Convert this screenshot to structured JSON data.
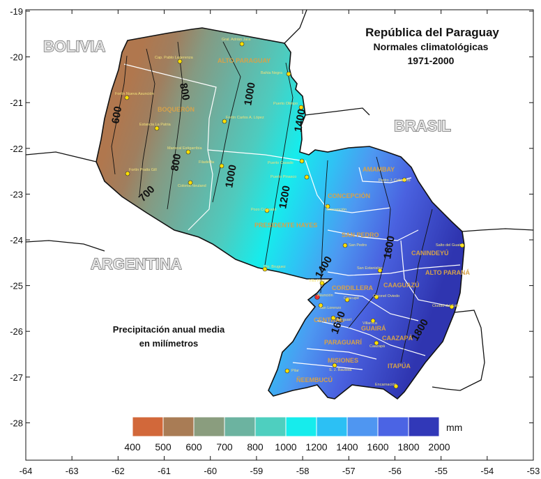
{
  "title": {
    "line1": "República del Paraguay",
    "line2": "Normales climatológicas",
    "line3": "1971-2000"
  },
  "axes": {
    "x_ticks": [
      "-64",
      "-63",
      "-62",
      "-61",
      "-60",
      "-59",
      "-58",
      "-57",
      "-56",
      "-55",
      "-54",
      "-53"
    ],
    "y_ticks": [
      "-19",
      "-20",
      "-21",
      "-22",
      "-23",
      "-24",
      "-25",
      "-26",
      "-27",
      "-28"
    ]
  },
  "countries": {
    "bolivia": "BOLIVIA",
    "brasil": "BRASIL",
    "argentina": "ARGENTINA"
  },
  "note": {
    "line1": "Precipitación anual media",
    "line2": "en milímetros"
  },
  "legend": {
    "unit": "mm",
    "ticks": [
      "400",
      "500",
      "600",
      "700",
      "800",
      "1000",
      "1200",
      "1400",
      "1600",
      "1800",
      "2000"
    ],
    "colors": [
      "#d2683a",
      "#a97c55",
      "#8a9d7e",
      "#6cb3a0",
      "#4ecfbf",
      "#16ecec",
      "#2cc0f4",
      "#4f96f1",
      "#4b64e4",
      "#3138b8"
    ]
  },
  "departments": [
    "ALTO PARAGUAY",
    "BOQUERÓN",
    "PRESIDENTE HAYES",
    "CONCEPCIÓN",
    "AMAMBAY",
    "SAN PEDRO",
    "CANINDEYÚ",
    "ALTO PARANÁ",
    "CAAGUAZÚ",
    "CORDILLERA",
    "CENTRAL",
    "GUAIRÁ",
    "PARAGUARÍ",
    "CAAZAPÁ",
    "MISIONES",
    "ÑEEMBUCÚ",
    "ITAPÚA"
  ],
  "isohyets": [
    "600",
    "700",
    "800",
    "800",
    "1000",
    "1000",
    "1200",
    "1400",
    "1600",
    "1800",
    "1400",
    "1600"
  ],
  "stations": [
    "Gral. Adrián Jara",
    "Cap. Pablo Lagerenza",
    "Bahía Negra",
    "Fortín Nueva Asunción",
    "Puerto Olimpo",
    "Estancia La Patria",
    "Fortín Carlos A. López",
    "Mariscal Estigarribia",
    "Filadelfia",
    "Fortín Pratts Gill",
    "Colonia Neuland",
    "Puerto Casado",
    "Pedro J. Caballero",
    "Puerto Pinasco",
    "Concepción",
    "Pozo Colorado",
    "San Pedro",
    "Salto del Guairá",
    "San Estanislao",
    "Pto. Bruguez",
    "Villa Hayes",
    "Asunción",
    "Coronel Oviedo",
    "Caacupé",
    "San Lorenzo",
    "Ciudad del Este",
    "Paraguarí",
    "Villarrica",
    "Caazapá",
    "S. J. Bautista",
    "Pilar",
    "Encarnación"
  ]
}
